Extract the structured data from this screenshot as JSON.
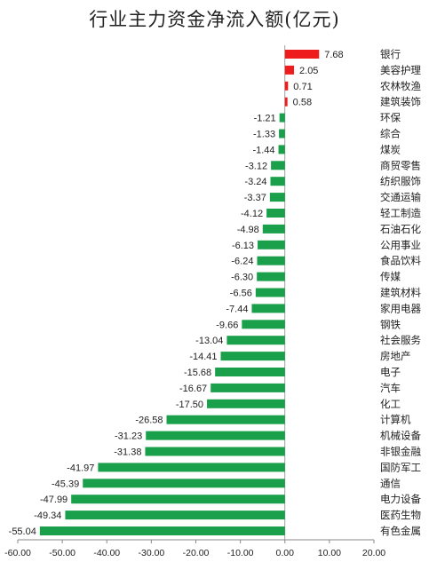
{
  "chart_data": {
    "type": "bar",
    "orientation": "horizontal",
    "title": "行业主力资金净流入额(亿元)",
    "categories": [
      "银行",
      "美容护理",
      "农林牧渔",
      "建筑装饰",
      "环保",
      "综合",
      "煤炭",
      "商贸零售",
      "纺织服饰",
      "交通运输",
      "轻工制造",
      "石油石化",
      "公用事业",
      "食品饮料",
      "传媒",
      "建筑材料",
      "家用电器",
      "钢铁",
      "社会服务",
      "房地产",
      "电子",
      "汽车",
      "化工",
      "计算机",
      "机械设备",
      "非银金融",
      "国防军工",
      "通信",
      "电力设备",
      "医药生物",
      "有色金属"
    ],
    "values": [
      7.68,
      2.05,
      0.71,
      0.58,
      -1.21,
      -1.33,
      -1.44,
      -3.12,
      -3.24,
      -3.37,
      -4.12,
      -4.98,
      -6.13,
      -6.24,
      -6.3,
      -6.56,
      -7.44,
      -9.66,
      -13.04,
      -14.41,
      -15.68,
      -16.67,
      -17.5,
      -26.58,
      -31.23,
      -31.38,
      -41.97,
      -45.39,
      -47.99,
      -49.34,
      -55.04
    ],
    "value_labels": [
      "7.68",
      "2.05",
      "0.71",
      "0.58",
      "-1.21",
      "-1.33",
      "-1.44",
      "-3.12",
      "-3.24",
      "-3.37",
      "-4.12",
      "-4.98",
      "-6.13",
      "-6.24",
      "-6.30",
      "-6.56",
      "-7.44",
      "-9.66",
      "-13.04",
      "-14.41",
      "-15.68",
      "-16.67",
      "-17.50",
      "-26.58",
      "-31.23",
      "-31.38",
      "-41.97",
      "-45.39",
      "-47.99",
      "-49.34",
      "-55.04"
    ],
    "xlim": [
      -60,
      20
    ],
    "x_ticks": [
      -60,
      -50,
      -40,
      -30,
      -20,
      -10,
      0,
      10,
      20
    ],
    "x_tick_labels": [
      "-60.00",
      "-50.00",
      "-40.00",
      "-30.00",
      "-20.00",
      "-10.00",
      "0.00",
      "10.00",
      "20.00"
    ],
    "grid": false,
    "legend": "none",
    "colors": {
      "positive": "#ee1c1c",
      "negative": "#1aa04a",
      "axis": "#888888",
      "text": "#222222"
    }
  }
}
